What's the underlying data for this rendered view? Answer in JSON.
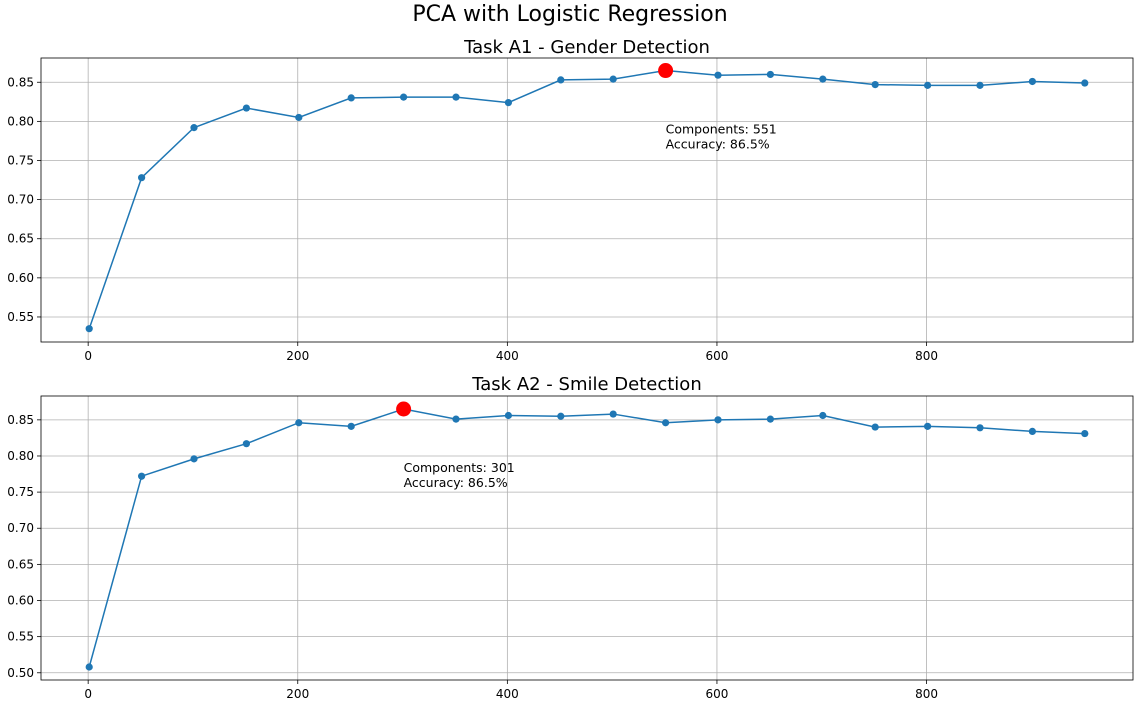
{
  "figure": {
    "suptitle": "PCA with Logistic Regression"
  },
  "colors": {
    "series": "#1f77b4",
    "best_marker": "#ff0000",
    "grid": "#b0b0b0"
  },
  "chart_data": [
    {
      "type": "line",
      "title": "Task A1 - Gender Detection",
      "xlabel": "",
      "ylabel": "",
      "x": [
        1,
        51,
        101,
        151,
        201,
        251,
        301,
        351,
        401,
        451,
        501,
        551,
        601,
        651,
        701,
        751,
        801,
        851,
        901,
        951
      ],
      "y": [
        0.535,
        0.728,
        0.792,
        0.817,
        0.805,
        0.83,
        0.831,
        0.831,
        0.824,
        0.853,
        0.854,
        0.865,
        0.859,
        0.86,
        0.854,
        0.847,
        0.846,
        0.846,
        0.851,
        0.849
      ],
      "xlim": [
        -45,
        997
      ],
      "ylim": [
        0.518,
        0.881
      ],
      "xticks": [
        0,
        200,
        400,
        600,
        800
      ],
      "xtick_labels": [
        "0",
        "200",
        "400",
        "600",
        "800"
      ],
      "yticks": [
        0.55,
        0.6,
        0.65,
        0.7,
        0.75,
        0.8,
        0.85
      ],
      "ytick_labels": [
        "0.55",
        "0.60",
        "0.65",
        "0.70",
        "0.75",
        "0.80",
        "0.85"
      ],
      "grid": true,
      "best": {
        "x": 551,
        "y": 0.865
      },
      "annotation": [
        "Components: 551",
        "Accuracy: 86.5%"
      ]
    },
    {
      "type": "line",
      "title": "Task A2 - Smile Detection",
      "xlabel": "",
      "ylabel": "",
      "x": [
        1,
        51,
        101,
        151,
        201,
        251,
        301,
        351,
        401,
        451,
        501,
        551,
        601,
        651,
        701,
        751,
        801,
        851,
        901,
        951
      ],
      "y": [
        0.508,
        0.772,
        0.796,
        0.817,
        0.846,
        0.841,
        0.865,
        0.851,
        0.856,
        0.855,
        0.858,
        0.846,
        0.85,
        0.851,
        0.856,
        0.84,
        0.841,
        0.839,
        0.834,
        0.831
      ],
      "xlim": [
        -45,
        997
      ],
      "ylim": [
        0.49,
        0.883
      ],
      "xticks": [
        0,
        200,
        400,
        600,
        800
      ],
      "xtick_labels": [
        "0",
        "200",
        "400",
        "600",
        "800"
      ],
      "yticks": [
        0.5,
        0.55,
        0.6,
        0.65,
        0.7,
        0.75,
        0.8,
        0.85
      ],
      "ytick_labels": [
        "0.50",
        "0.55",
        "0.60",
        "0.65",
        "0.70",
        "0.75",
        "0.80",
        "0.85"
      ],
      "grid": true,
      "best": {
        "x": 301,
        "y": 0.865
      },
      "annotation": [
        "Components: 301",
        "Accuracy: 86.5%"
      ]
    }
  ]
}
